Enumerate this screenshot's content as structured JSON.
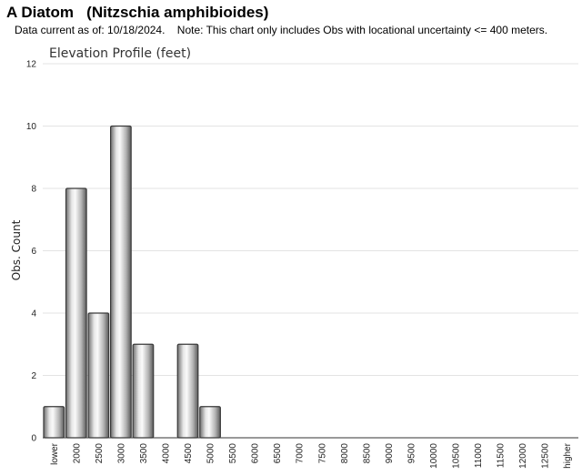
{
  "header": {
    "title": "A Diatom   (Nitzschia amphibioides)",
    "subtitle": "Data current as of: 10/18/2024.    Note: This chart only includes Obs with locational uncertainty <= 400 meters."
  },
  "chart_data": {
    "type": "bar",
    "title": "Elevation Profile (feet)",
    "xlabel": "",
    "ylabel": "Obs. Count",
    "ylim": [
      0,
      12
    ],
    "yticks": [
      0,
      2,
      4,
      6,
      8,
      10,
      12
    ],
    "grid": true,
    "categories": [
      "lower",
      "2000",
      "2500",
      "3000",
      "3500",
      "4000",
      "4500",
      "5000",
      "5500",
      "6000",
      "6500",
      "7000",
      "7500",
      "8000",
      "8500",
      "9000",
      "9500",
      "10000",
      "10500",
      "11000",
      "11500",
      "12000",
      "12500",
      "higher"
    ],
    "values": [
      1,
      8,
      4,
      10,
      3,
      0,
      3,
      1,
      0,
      0,
      0,
      0,
      0,
      0,
      0,
      0,
      0,
      0,
      0,
      0,
      0,
      0,
      0,
      0
    ]
  }
}
